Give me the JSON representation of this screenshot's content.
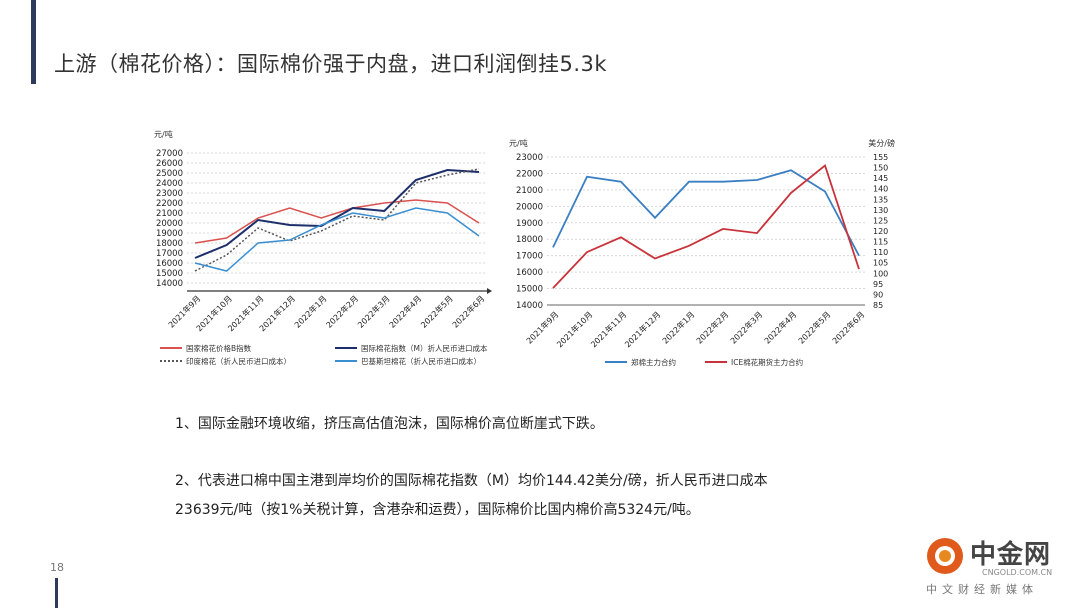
{
  "page": {
    "title": "上游（棉花价格）：国际棉价强于内盘，进口利润倒挂5.3k",
    "page_number": "18"
  },
  "points": [
    "1、国际金融环境收缩，挤压高估值泡沫，国际棉价高位断崖式下跌。",
    "2、代表进口棉中国主港到岸均价的国际棉花指数（M）均价144.42美分/磅，折人民币进口成本",
    "23639元/吨（按1%关税计算，含港杂和运费），国际棉价比国内棉价高5324元/吨。"
  ],
  "logo": {
    "text": "中金网",
    "sub": "中文财经新媒体",
    "domain": "CNGOLD.COM.CN"
  },
  "chart_data": [
    {
      "type": "line",
      "ylabel": "元/吨",
      "ylim": [
        14000,
        27000
      ],
      "y_ticks": [
        "27000",
        "26000",
        "25000",
        "24000",
        "23000",
        "22000",
        "21000",
        "20000",
        "19000",
        "18000",
        "17000",
        "16000",
        "15000",
        "14000"
      ],
      "categories": [
        "2021年9月",
        "2021年10月",
        "2021年11月",
        "2021年12月",
        "2022年1月",
        "2022年2月",
        "2022年3月",
        "2022年4月",
        "2022年5月",
        "2022年6月"
      ],
      "colors": {
        "cc_index": "#d9524f",
        "m_index": "#1d2f6b",
        "india": "#555555",
        "brazil": "#3a8fd0"
      },
      "series": [
        {
          "name": "国家棉花价格B指数",
          "key": "cc_index",
          "values": [
            18000,
            18500,
            20500,
            21500,
            20500,
            21500,
            22000,
            22300,
            22000,
            20000
          ]
        },
        {
          "name": "国际棉花指数（M）折人民币进口成本",
          "key": "m_index",
          "values": [
            16500,
            17800,
            20300,
            19800,
            19700,
            21500,
            21200,
            24300,
            25300,
            25100
          ]
        },
        {
          "name": "印度棉花（折人民币进口成本）",
          "key": "india",
          "values": [
            15200,
            16800,
            19500,
            18200,
            19200,
            20700,
            20300,
            24000,
            24800,
            25400
          ]
        },
        {
          "name": "巴基斯坦棉花（折人民币进口成本）",
          "key": "brazil",
          "values": [
            16000,
            15200,
            18000,
            18300,
            19800,
            21000,
            20500,
            21500,
            21000,
            18700
          ]
        }
      ]
    },
    {
      "type": "line",
      "ylabel": "元/吨",
      "y2label": "美分/磅",
      "ylim": [
        14000,
        23000
      ],
      "y2lim": [
        85,
        155
      ],
      "y_ticks": [
        "23000",
        "22000",
        "21000",
        "20000",
        "19000",
        "18000",
        "17000",
        "16000",
        "15000",
        "14000"
      ],
      "y2_ticks": [
        "155",
        "150",
        "145",
        "140",
        "135",
        "130",
        "125",
        "120",
        "115",
        "110",
        "105",
        "100",
        "95",
        "90",
        "85"
      ],
      "categories": [
        "2021年9月",
        "2021年10月",
        "2021年11月",
        "2021年12月",
        "2022年1月",
        "2022年2月",
        "2022年3月",
        "2022年4月",
        "2022年5月",
        "2022年6月"
      ],
      "colors": {
        "zheng": "#3a7fc4",
        "ice": "#c8323a"
      },
      "series": [
        {
          "name": "郑棉主力合约",
          "key": "zheng",
          "axis": "left",
          "values": [
            17500,
            21800,
            21500,
            19300,
            21500,
            21500,
            21600,
            22200,
            20900,
            17000
          ]
        },
        {
          "name": "ICE棉花期货主力合约",
          "key": "ice",
          "axis": "right",
          "values": [
            93,
            110,
            117,
            107,
            113,
            121,
            119,
            138,
            151,
            102
          ]
        }
      ]
    }
  ]
}
